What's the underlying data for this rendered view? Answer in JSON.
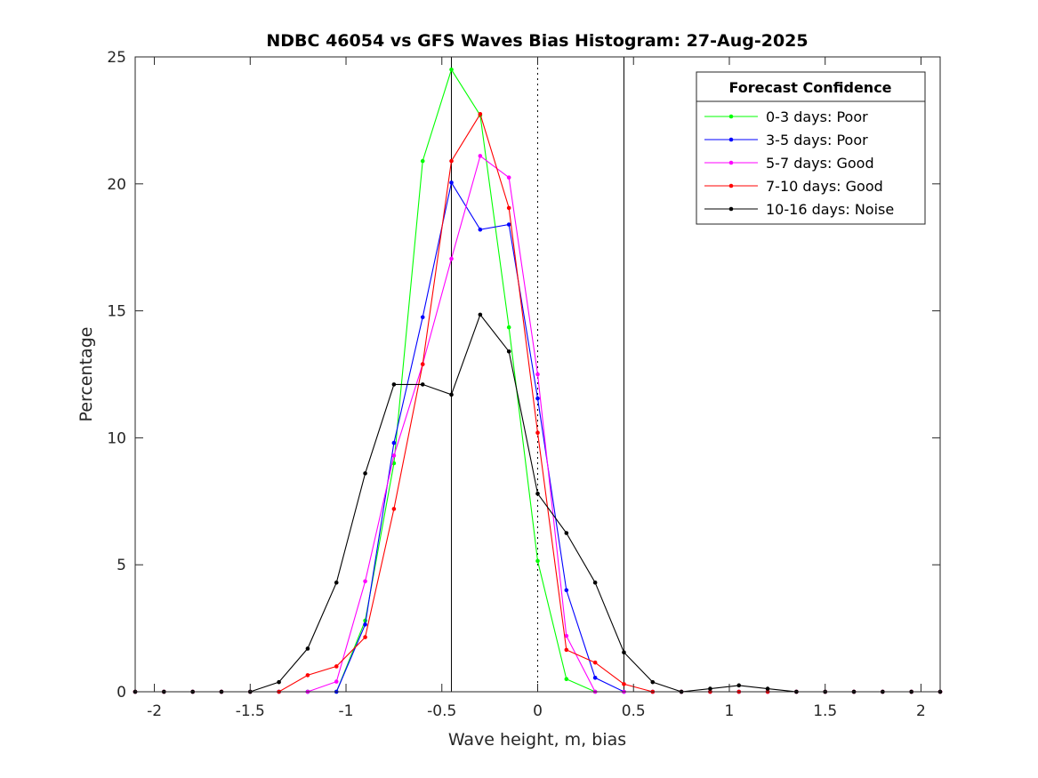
{
  "chart_data": {
    "type": "line",
    "title": "NDBC 46054 vs GFS Waves Bias Histogram: 27-Aug-2025",
    "xlabel": "Wave height, m, bias",
    "ylabel": "Percentage",
    "xlim": [
      -2.1,
      2.1
    ],
    "ylim": [
      0,
      25
    ],
    "xticks": [
      -2,
      -1.5,
      -1,
      -0.5,
      0,
      0.5,
      1,
      1.5,
      2
    ],
    "xtick_labels": [
      "-2",
      "-1.5",
      "-1",
      "-0.5",
      "0",
      "0.5",
      "1",
      "1.5",
      "2"
    ],
    "yticks": [
      0,
      5,
      10,
      15,
      20,
      25
    ],
    "ytick_labels": [
      "0",
      "5",
      "10",
      "15",
      "20",
      "25"
    ],
    "grid": false,
    "vertical_lines": [
      {
        "x": -0.45,
        "style": "solid"
      },
      {
        "x": 0,
        "style": "dotted"
      },
      {
        "x": 0.45,
        "style": "solid"
      }
    ],
    "legend": {
      "title": "Forecast Confidence",
      "placement": "top-right"
    },
    "x": [
      -2.1,
      -1.95,
      -1.8,
      -1.65,
      -1.5,
      -1.35,
      -1.2,
      -1.05,
      -0.9,
      -0.75,
      -0.6,
      -0.45,
      -0.3,
      -0.15,
      0,
      0.15,
      0.3,
      0.45,
      0.6,
      0.75,
      0.9,
      1.05,
      1.2,
      1.35,
      1.5,
      1.65,
      1.8,
      1.95,
      2.1
    ],
    "series": [
      {
        "name": "0-3 days: Poor",
        "color": "#00ff00",
        "values": [
          0,
          0,
          0,
          0,
          0,
          0,
          0,
          0,
          2.8,
          9.0,
          20.9,
          24.5,
          22.7,
          14.35,
          5.15,
          0.5,
          0,
          0,
          0,
          0,
          0,
          0,
          0,
          0,
          0,
          0,
          0,
          0,
          0
        ]
      },
      {
        "name": "3-5 days: Poor",
        "color": "#0000ff",
        "values": [
          0,
          0,
          0,
          0,
          0,
          0,
          0,
          0,
          2.65,
          9.8,
          14.75,
          20.05,
          18.2,
          18.4,
          11.55,
          4.0,
          0.55,
          0,
          0,
          0,
          0,
          0,
          0,
          0,
          0,
          0,
          0,
          0,
          0
        ]
      },
      {
        "name": "5-7 days: Good",
        "color": "#ff00ff",
        "values": [
          0,
          0,
          0,
          0,
          0,
          0,
          0,
          0.4,
          4.35,
          9.3,
          12.9,
          17.05,
          21.1,
          20.25,
          12.5,
          2.2,
          0,
          0,
          0,
          0,
          0,
          0,
          0,
          0,
          0,
          0,
          0,
          0,
          0
        ]
      },
      {
        "name": "7-10 days: Good",
        "color": "#ff0000",
        "values": [
          0,
          0,
          0,
          0,
          0,
          0,
          0.65,
          1.0,
          2.15,
          7.2,
          12.9,
          20.9,
          22.75,
          19.05,
          10.2,
          1.65,
          1.15,
          0.3,
          0,
          0,
          0,
          0,
          0,
          0,
          0,
          0,
          0,
          0,
          0
        ]
      },
      {
        "name": "10-16 days: Noise",
        "color": "#000000",
        "values": [
          0,
          0,
          0,
          0,
          0,
          0.38,
          1.7,
          4.3,
          8.6,
          12.1,
          12.1,
          11.7,
          14.85,
          13.4,
          7.8,
          6.25,
          4.3,
          1.55,
          0.38,
          0,
          0.12,
          0.25,
          0.12,
          0,
          0,
          0,
          0,
          0,
          0
        ]
      }
    ]
  }
}
